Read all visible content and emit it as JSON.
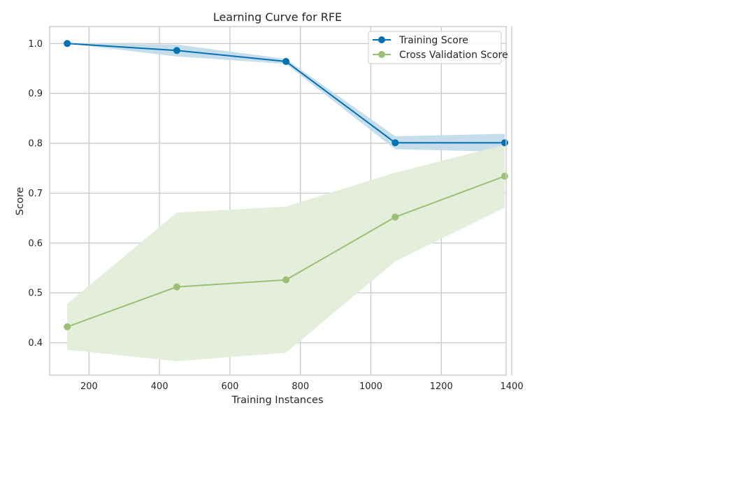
{
  "chart_data": {
    "type": "line",
    "title": "Learning Curve for RFE",
    "xlabel": "Training Instances",
    "ylabel": "Score",
    "xlim": [
      88,
      1384
    ],
    "ylim": [
      0.335,
      1.034
    ],
    "xticks": [
      200,
      400,
      600,
      800,
      1000,
      1200,
      1400
    ],
    "yticks": [
      0.4,
      0.5,
      0.6,
      0.7,
      0.8,
      0.9,
      1.0
    ],
    "xtick_labels": [
      "200",
      "400",
      "600",
      "800",
      "1000",
      "1200",
      "1400"
    ],
    "ytick_labels": [
      "0.4",
      "0.5",
      "0.6",
      "0.7",
      "0.8",
      "0.9",
      "1.0"
    ],
    "grid": true,
    "legend_position": "top-right",
    "x": [
      138,
      449,
      759,
      1069,
      1380
    ],
    "series": [
      {
        "name": "Training Score",
        "color": "#0072b2",
        "band_color": "#c3dcea",
        "values": [
          1.0,
          0.986,
          0.964,
          0.801,
          0.801
        ],
        "lower": [
          1.0,
          0.974,
          0.959,
          0.788,
          0.783
        ],
        "upper": [
          1.0,
          0.998,
          0.969,
          0.814,
          0.819
        ]
      },
      {
        "name": "Cross Validation Score",
        "color": "#9ac173",
        "band_color": "#e3edd9",
        "values": [
          0.432,
          0.512,
          0.526,
          0.652,
          0.734
        ],
        "lower": [
          0.386,
          0.363,
          0.38,
          0.563,
          0.671
        ],
        "upper": [
          0.478,
          0.661,
          0.673,
          0.741,
          0.797
        ]
      }
    ]
  }
}
